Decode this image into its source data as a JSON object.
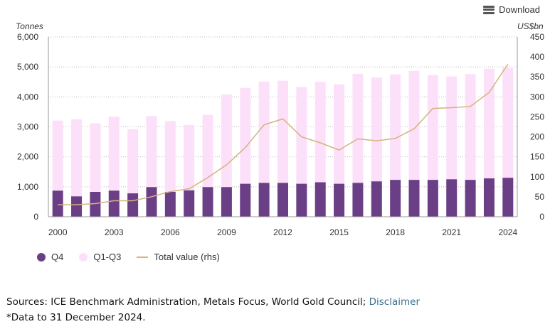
{
  "toolbar": {
    "download_label": "Download"
  },
  "legend": [
    {
      "label": "Q4",
      "color": "#6b3f86",
      "kind": "dot"
    },
    {
      "label": "Q1-Q3",
      "color": "#fce0fa",
      "kind": "dot"
    },
    {
      "label": "Total value (rhs)",
      "color": "#d6b27c",
      "kind": "line"
    }
  ],
  "footer": {
    "sources_text": "Sources: ICE Benchmark Administration, Metals Focus, World Gold Council; ",
    "disclaimer_link": "Disclaimer",
    "note": "*Data to 31 December 2024."
  },
  "chart_data": {
    "type": "bar",
    "stacked": true,
    "title": "",
    "ylabel": "Tonnes",
    "y2label": "US$bn",
    "ylim": [
      0,
      6000
    ],
    "y2lim": [
      0,
      450
    ],
    "yticks": [
      "0",
      "1,000",
      "2,000",
      "3,000",
      "4,000",
      "5,000",
      "6,000"
    ],
    "y2ticks": [
      "0",
      "50",
      "100",
      "150",
      "200",
      "250",
      "300",
      "350",
      "400",
      "450"
    ],
    "grid": true,
    "legend_position": "bottom-left",
    "categories": [
      "2000",
      "2001",
      "2002",
      "2003",
      "2004",
      "2005",
      "2006",
      "2007",
      "2008",
      "2009",
      "2010",
      "2011",
      "2012",
      "2013",
      "2014",
      "2015",
      "2016",
      "2017",
      "2018",
      "2019",
      "2020",
      "2021",
      "2022",
      "2023",
      "2024"
    ],
    "xtick_labels": [
      "2000",
      "2003",
      "2006",
      "2009",
      "2012",
      "2015",
      "2018",
      "2021",
      "2024"
    ],
    "series": [
      {
        "name": "Q4",
        "type": "bar",
        "axis": "left",
        "color": "#6b3f86",
        "values": [
          870,
          680,
          830,
          870,
          780,
          990,
          830,
          880,
          990,
          990,
          1100,
          1130,
          1130,
          1100,
          1150,
          1100,
          1130,
          1180,
          1230,
          1230,
          1230,
          1250,
          1230,
          1280,
          1300
        ]
      },
      {
        "name": "Q1-Q3",
        "type": "bar",
        "axis": "left",
        "color": "#fce0fa",
        "values": [
          2340,
          2570,
          2290,
          2470,
          2140,
          2370,
          2360,
          2180,
          2410,
          3090,
          3200,
          3380,
          3410,
          3230,
          3350,
          3320,
          3640,
          3470,
          3520,
          3640,
          3500,
          3430,
          3530,
          3660,
          3670
        ]
      },
      {
        "name": "Total value (rhs)",
        "type": "line",
        "axis": "right",
        "color": "#d6b27c",
        "values": [
          30,
          30,
          33,
          40,
          40,
          50,
          63,
          70,
          98,
          130,
          173,
          230,
          245,
          200,
          185,
          167,
          195,
          190,
          196,
          220,
          271,
          273,
          276,
          311,
          382
        ]
      }
    ]
  }
}
